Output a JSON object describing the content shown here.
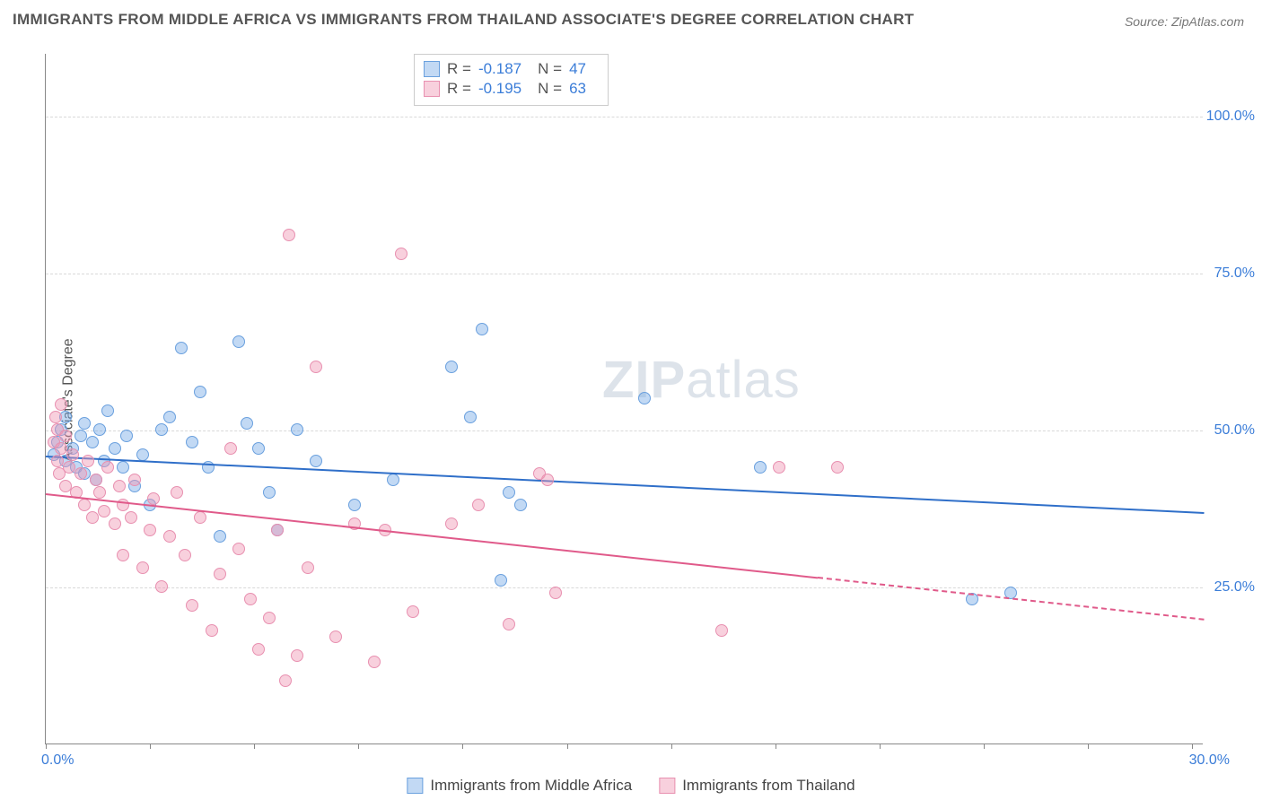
{
  "title": "IMMIGRANTS FROM MIDDLE AFRICA VS IMMIGRANTS FROM THAILAND ASSOCIATE'S DEGREE CORRELATION CHART",
  "source": "Source: ZipAtlas.com",
  "ylabel": "Associate's Degree",
  "watermark": {
    "bold": "ZIP",
    "light": "atlas"
  },
  "chart": {
    "type": "scatter",
    "xlim": [
      0,
      30
    ],
    "ylim": [
      0,
      110
    ],
    "x_tick_positions": [
      0,
      2.7,
      5.4,
      8.1,
      10.8,
      13.5,
      16.2,
      18.9,
      21.6,
      24.3,
      27,
      29.7
    ],
    "y_ticks": [
      {
        "v": 25,
        "label": "25.0%"
      },
      {
        "v": 50,
        "label": "50.0%"
      },
      {
        "v": 75,
        "label": "75.0%"
      },
      {
        "v": 100,
        "label": "100.0%"
      }
    ],
    "x_min_label": "0.0%",
    "x_max_label": "30.0%",
    "background_color": "#ffffff",
    "grid_color": "#d8d8d8"
  },
  "series": [
    {
      "name": "Immigrants from Middle Africa",
      "fill": "rgba(120,170,230,0.45)",
      "stroke": "#6aa0de",
      "line_color": "#2f6fc9",
      "R": "-0.187",
      "N": "47",
      "trend": {
        "x1": 0,
        "y1": 46,
        "x2": 30,
        "y2": 37,
        "dash_from_x": 30
      },
      "points": [
        [
          0.2,
          46
        ],
        [
          0.3,
          48
        ],
        [
          0.4,
          50
        ],
        [
          0.5,
          45
        ],
        [
          0.5,
          52
        ],
        [
          0.7,
          47
        ],
        [
          0.8,
          44
        ],
        [
          0.9,
          49
        ],
        [
          1.0,
          43
        ],
        [
          1.0,
          51
        ],
        [
          1.2,
          48
        ],
        [
          1.3,
          42
        ],
        [
          1.4,
          50
        ],
        [
          1.5,
          45
        ],
        [
          1.6,
          53
        ],
        [
          1.8,
          47
        ],
        [
          2.0,
          44
        ],
        [
          2.1,
          49
        ],
        [
          2.3,
          41
        ],
        [
          2.5,
          46
        ],
        [
          2.7,
          38
        ],
        [
          3.0,
          50
        ],
        [
          3.2,
          52
        ],
        [
          3.5,
          63
        ],
        [
          3.8,
          48
        ],
        [
          4.0,
          56
        ],
        [
          4.2,
          44
        ],
        [
          4.5,
          33
        ],
        [
          5.0,
          64
        ],
        [
          5.2,
          51
        ],
        [
          5.5,
          47
        ],
        [
          5.8,
          40
        ],
        [
          6.0,
          34
        ],
        [
          6.5,
          50
        ],
        [
          7.0,
          45
        ],
        [
          8.0,
          38
        ],
        [
          9.0,
          42
        ],
        [
          10.5,
          60
        ],
        [
          11.0,
          52
        ],
        [
          11.3,
          66
        ],
        [
          11.8,
          26
        ],
        [
          12.0,
          40
        ],
        [
          12.3,
          38
        ],
        [
          15.5,
          55
        ],
        [
          18.5,
          44
        ],
        [
          24.0,
          23
        ],
        [
          25.0,
          24
        ]
      ]
    },
    {
      "name": "Immigrants from Thailand",
      "fill": "rgba(240,150,180,0.45)",
      "stroke": "#e890b0",
      "line_color": "#e05a8a",
      "R": "-0.195",
      "N": "63",
      "trend": {
        "x1": 0,
        "y1": 40,
        "x2": 30,
        "y2": 20,
        "dash_from_x": 20
      },
      "points": [
        [
          0.2,
          48
        ],
        [
          0.25,
          52
        ],
        [
          0.3,
          45
        ],
        [
          0.3,
          50
        ],
        [
          0.35,
          43
        ],
        [
          0.4,
          47
        ],
        [
          0.4,
          54
        ],
        [
          0.5,
          41
        ],
        [
          0.5,
          49
        ],
        [
          0.6,
          44
        ],
        [
          0.7,
          46
        ],
        [
          0.8,
          40
        ],
        [
          0.9,
          43
        ],
        [
          1.0,
          38
        ],
        [
          1.1,
          45
        ],
        [
          1.2,
          36
        ],
        [
          1.3,
          42
        ],
        [
          1.4,
          40
        ],
        [
          1.5,
          37
        ],
        [
          1.6,
          44
        ],
        [
          1.8,
          35
        ],
        [
          1.9,
          41
        ],
        [
          2.0,
          38
        ],
        [
          2.0,
          30
        ],
        [
          2.2,
          36
        ],
        [
          2.3,
          42
        ],
        [
          2.5,
          28
        ],
        [
          2.7,
          34
        ],
        [
          2.8,
          39
        ],
        [
          3.0,
          25
        ],
        [
          3.2,
          33
        ],
        [
          3.4,
          40
        ],
        [
          3.6,
          30
        ],
        [
          3.8,
          22
        ],
        [
          4.0,
          36
        ],
        [
          4.3,
          18
        ],
        [
          4.5,
          27
        ],
        [
          4.8,
          47
        ],
        [
          5.0,
          31
        ],
        [
          5.3,
          23
        ],
        [
          5.5,
          15
        ],
        [
          5.8,
          20
        ],
        [
          6.0,
          34
        ],
        [
          6.2,
          10
        ],
        [
          6.3,
          81
        ],
        [
          6.5,
          14
        ],
        [
          6.8,
          28
        ],
        [
          7.0,
          60
        ],
        [
          7.5,
          17
        ],
        [
          8.0,
          35
        ],
        [
          8.5,
          13
        ],
        [
          8.8,
          34
        ],
        [
          9.2,
          78
        ],
        [
          9.5,
          21
        ],
        [
          10.5,
          35
        ],
        [
          11.2,
          38
        ],
        [
          12.0,
          19
        ],
        [
          12.8,
          43
        ],
        [
          13.0,
          42
        ],
        [
          13.2,
          24
        ],
        [
          17.5,
          18
        ],
        [
          19.0,
          44
        ],
        [
          20.5,
          44
        ]
      ]
    }
  ],
  "legend": {
    "series1": "Immigrants from Middle Africa",
    "series2": "Immigrants from Thailand"
  }
}
